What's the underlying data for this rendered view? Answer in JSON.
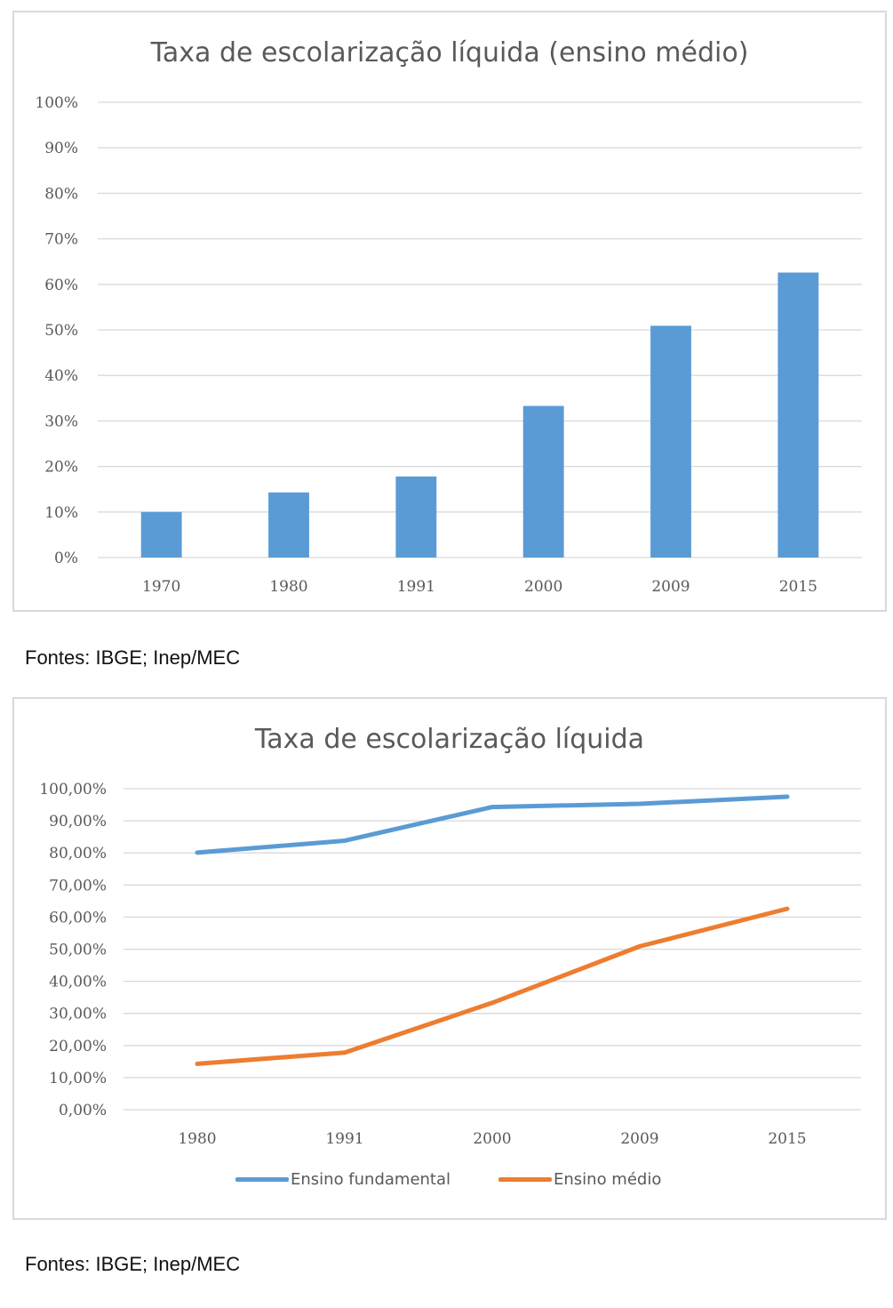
{
  "chart1": {
    "title": "Taxa de escolarização líquida (ensino médio)",
    "source": "Fontes: IBGE; Inep/MEC",
    "color": "#5b9bd5"
  },
  "chart2": {
    "title": "Taxa de escolarização líquida",
    "source": "Fontes: IBGE; Inep/MEC",
    "legend": [
      {
        "name": "Ensino fundamental",
        "color": "#5b9bd5"
      },
      {
        "name": "Ensino médio",
        "color": "#ed7d31"
      }
    ]
  },
  "chart_data": [
    {
      "type": "bar",
      "title": "Taxa de escolarização líquida (ensino médio)",
      "categories": [
        "1970",
        "1980",
        "1991",
        "2000",
        "2009",
        "2015"
      ],
      "values": [
        10,
        14.3,
        17.8,
        33.3,
        50.9,
        62.6
      ],
      "y_ticks": [
        "0%",
        "10%",
        "20%",
        "30%",
        "40%",
        "50%",
        "60%",
        "70%",
        "80%",
        "90%",
        "100%"
      ],
      "ylim": [
        0,
        100
      ],
      "grid": true,
      "legend": "none"
    },
    {
      "type": "line",
      "title": "Taxa de escolarização líquida",
      "categories": [
        "1980",
        "1991",
        "2000",
        "2009",
        "2015"
      ],
      "series": [
        {
          "name": "Ensino fundamental",
          "values": [
            80.1,
            83.8,
            94.3,
            95.3,
            97.5
          ]
        },
        {
          "name": "Ensino médio",
          "values": [
            14.3,
            17.8,
            33.3,
            50.9,
            62.6
          ]
        }
      ],
      "y_ticks": [
        "0,00%",
        "10,00%",
        "20,00%",
        "30,00%",
        "40,00%",
        "50,00%",
        "60,00%",
        "70,00%",
        "80,00%",
        "90,00%",
        "100,00%"
      ],
      "ylim": [
        0,
        100
      ],
      "grid": true,
      "legend": "bottom"
    }
  ]
}
